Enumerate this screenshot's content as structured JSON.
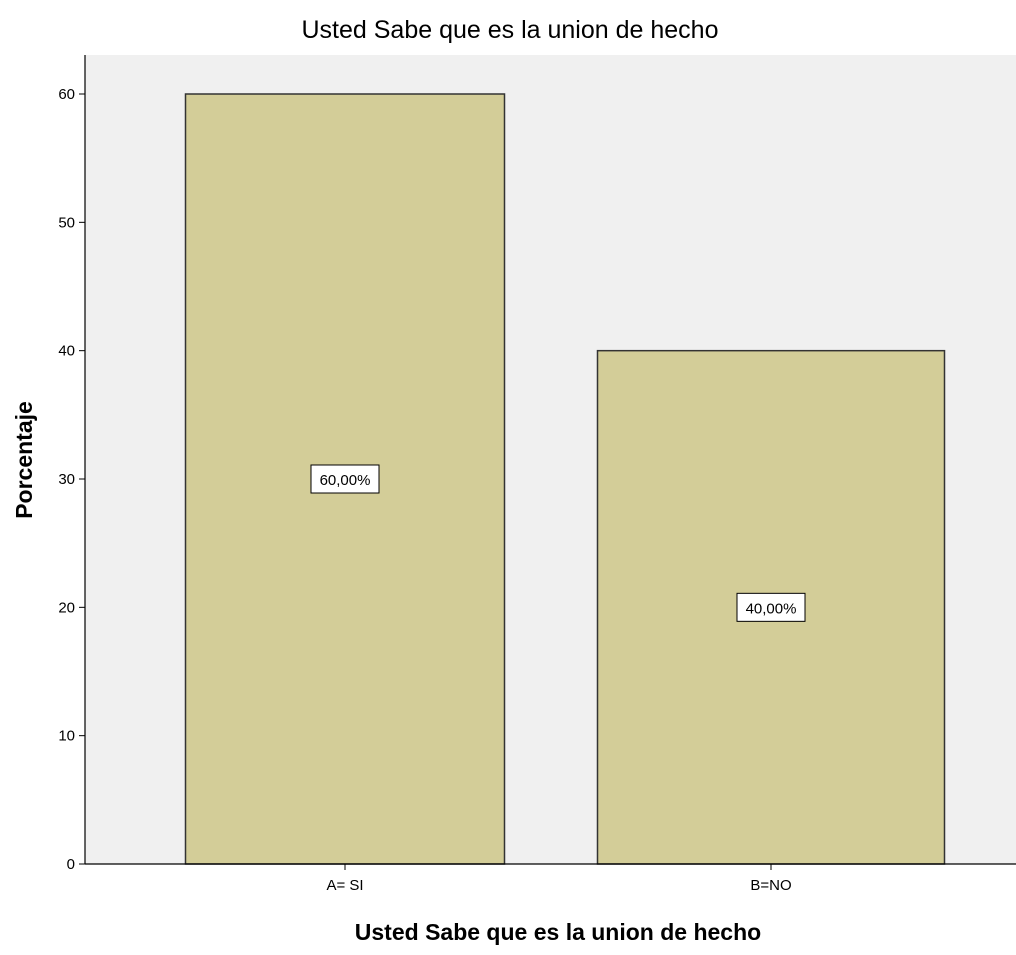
{
  "chart_data": {
    "type": "bar",
    "title": "Usted Sabe que es la union de hecho",
    "xlabel": "Usted Sabe que es la union de hecho",
    "ylabel": "Porcentaje",
    "categories": [
      "A= SI",
      "B=NO"
    ],
    "values": [
      60,
      40
    ],
    "data_labels": [
      "60,00%",
      "40,00%"
    ],
    "ylim": [
      0,
      60
    ],
    "yticks": [
      0,
      10,
      20,
      30,
      40,
      50,
      60
    ],
    "grid": false,
    "legend": "none",
    "colors": {
      "bar_fill": "#d3cd98",
      "bar_stroke": "#333333",
      "plot_background": "#f0f0f0",
      "label_box": "#ffffff"
    }
  }
}
